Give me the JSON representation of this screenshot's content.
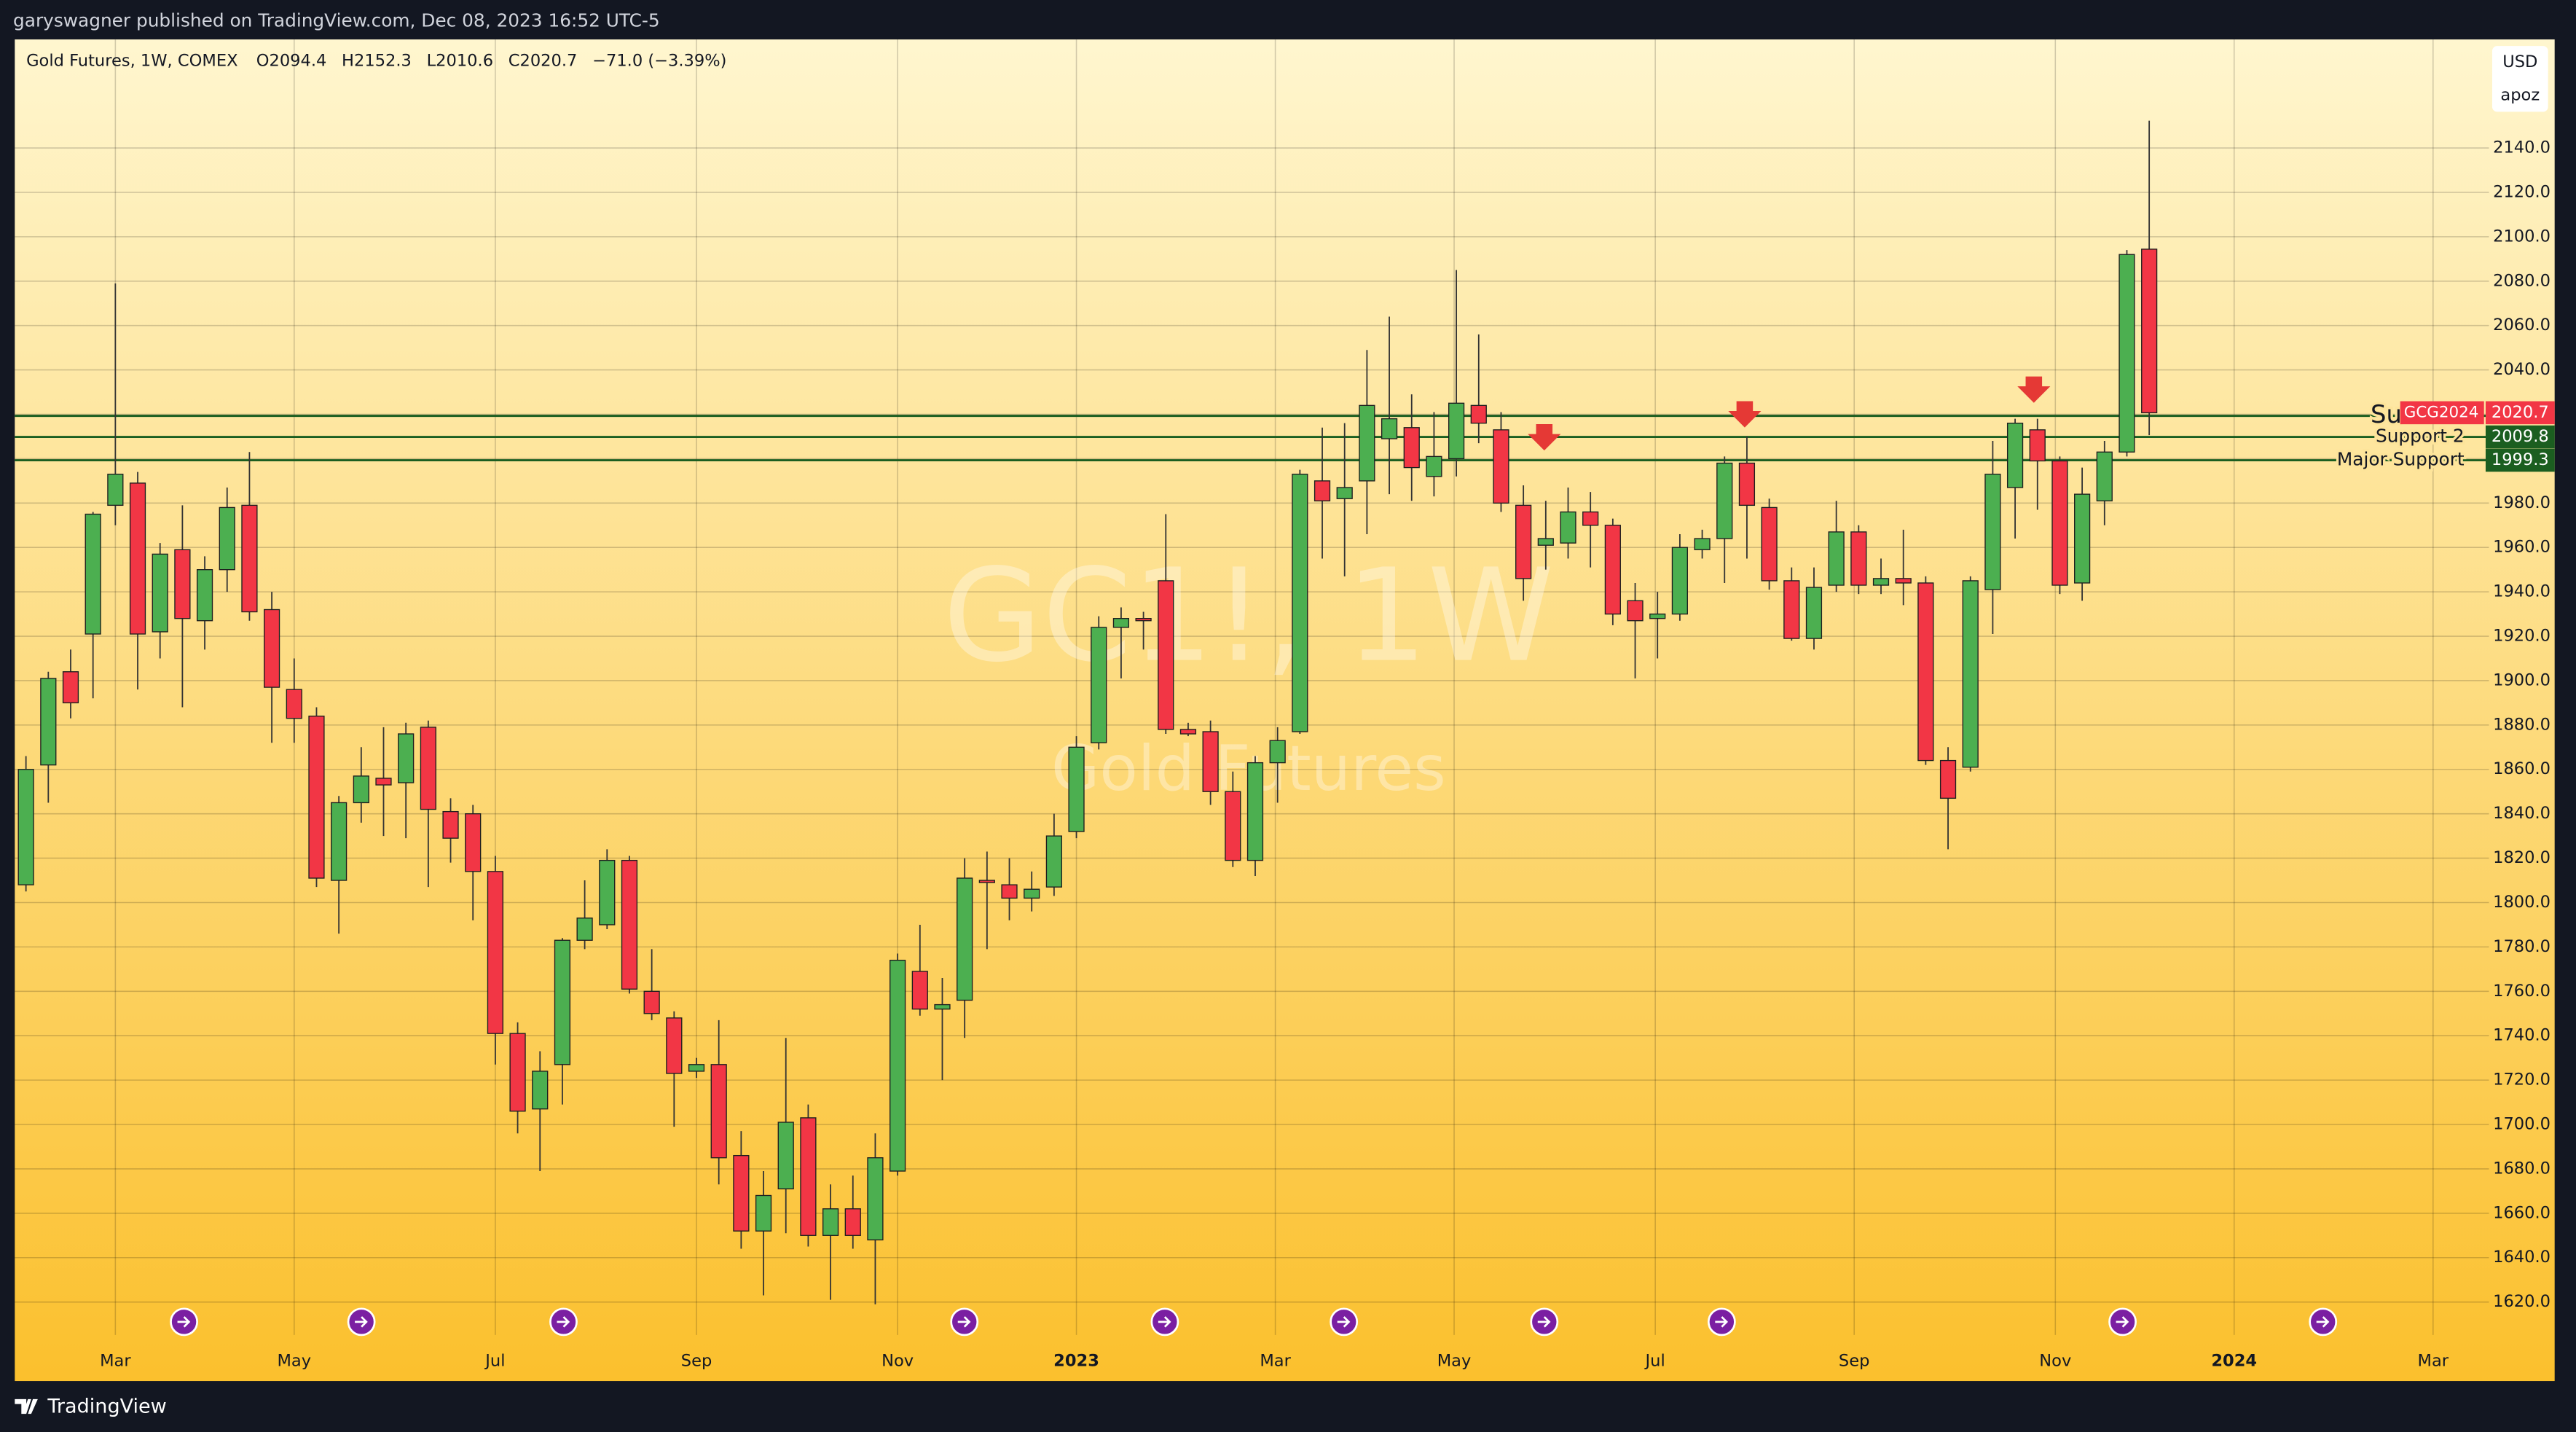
{
  "header": "garyswagner published on TradingView.com, Dec 08, 2023 16:52 UTC-5",
  "footer": "TradingView",
  "chart_data": {
    "type": "candlestick",
    "title": "Gold Futures, 1W, COMEX",
    "ohlc_labels": [
      "O2094.4",
      "H2152.3",
      "L2010.6",
      "C2020.7",
      "−71.0 (−3.39%)"
    ],
    "watermark": [
      "GC1!, 1W",
      "Gold Futures"
    ],
    "currency": "USD",
    "scale_label": "apoz",
    "symbol_label": "GCG2024",
    "last_value": 2020.7,
    "up_color": "#4caf50",
    "down_color": "#f23645",
    "open": [
      1808,
      1862,
      1904,
      1921,
      1979,
      1989,
      1922,
      1959,
      1927,
      1950,
      1979,
      1932,
      1896,
      1884,
      1810,
      1845,
      1856,
      1854,
      1879,
      1841,
      1840,
      1814,
      1741,
      1707,
      1727,
      1783,
      1790,
      1819,
      1760,
      1748,
      1724,
      1727,
      1686,
      1652,
      1671,
      1703,
      1650,
      1662,
      1648,
      1679,
      1769,
      1752,
      1756,
      1810,
      1808,
      1802,
      1807,
      1832,
      1872,
      1924,
      1928,
      1945,
      1878,
      1877,
      1850,
      1819,
      1863,
      1877,
      1990,
      1982,
      1990,
      2009,
      2014,
      1992,
      2000,
      2024,
      2013,
      1979,
      1961,
      1962,
      1976,
      1970,
      1936,
      1928,
      1930,
      1959,
      1964,
      1998,
      1978,
      1945,
      1919,
      1943,
      1967,
      1943,
      1946,
      1944,
      1864,
      1861,
      1941,
      1987,
      2013,
      1999,
      1944,
      1981,
      2003,
      2094.4
    ],
    "high": [
      1866,
      1904,
      1914,
      1976,
      2079,
      1994,
      1962,
      1979,
      1956,
      1987,
      2003,
      1940,
      1910,
      1888,
      1848,
      1870,
      1879,
      1881,
      1882,
      1847,
      1844,
      1821,
      1746,
      1733,
      1784,
      1810,
      1824,
      1821,
      1779,
      1751,
      1730,
      1747,
      1697,
      1679,
      1739,
      1709,
      1673,
      1677,
      1696,
      1777,
      1790,
      1766,
      1820,
      1823,
      1820,
      1814,
      1840,
      1875,
      1929,
      1933,
      1931,
      1975,
      1881,
      1882,
      1859,
      1866,
      1879,
      1995,
      2014,
      2016,
      2049,
      2064,
      2029,
      2021,
      2085,
      2056,
      2021,
      1988,
      1981,
      1987,
      1985,
      1973,
      1944,
      1940,
      1966,
      1968,
      2001,
      2010,
      1982,
      1951,
      1951,
      1981,
      1970,
      1955,
      1968,
      1947,
      1870,
      1947,
      2008,
      2018,
      2018,
      2001,
      1996,
      2008,
      2094,
      2152.3
    ],
    "low": [
      1805,
      1845,
      1883,
      1892,
      1970,
      1896,
      1910,
      1888,
      1914,
      1940,
      1927,
      1872,
      1872,
      1807,
      1786,
      1836,
      1830,
      1829,
      1807,
      1818,
      1792,
      1727,
      1696,
      1679,
      1709,
      1779,
      1788,
      1759,
      1747,
      1699,
      1721,
      1673,
      1644,
      1623,
      1651,
      1645,
      1621,
      1644,
      1619,
      1677,
      1749,
      1720,
      1739,
      1779,
      1792,
      1796,
      1803,
      1829,
      1869,
      1901,
      1914,
      1876,
      1875,
      1844,
      1816,
      1812,
      1845,
      1876,
      1955,
      1947,
      1966,
      1984,
      1981,
      1983,
      1992,
      2007,
      1976,
      1936,
      1950,
      1955,
      1951,
      1925,
      1901,
      1910,
      1927,
      1955,
      1944,
      1955,
      1941,
      1918,
      1914,
      1940,
      1939,
      1939,
      1934,
      1862,
      1824,
      1859,
      1921,
      1964,
      1977,
      1939,
      1936,
      1970,
      2001,
      2010.6
    ],
    "close": [
      1860,
      1901,
      1890,
      1975,
      1993,
      1921,
      1957,
      1928,
      1950,
      1978,
      1931,
      1897,
      1883,
      1811,
      1845,
      1857,
      1853,
      1876,
      1842,
      1829,
      1814,
      1741,
      1706,
      1724,
      1783,
      1793,
      1819,
      1761,
      1750,
      1723,
      1727,
      1685,
      1652,
      1668,
      1701,
      1650,
      1662,
      1650,
      1685,
      1774,
      1752,
      1754,
      1811,
      1809,
      1802,
      1806,
      1830,
      1870,
      1924,
      1928,
      1927,
      1878,
      1876,
      1850,
      1819,
      1863,
      1873,
      1993,
      1981,
      1987,
      2024,
      2018,
      1996,
      2001,
      2025,
      2016,
      1980,
      1946,
      1964,
      1976,
      1970,
      1930,
      1927,
      1930,
      1960,
      1964,
      1998,
      1979,
      1945,
      1919,
      1942,
      1967,
      1943,
      1946,
      1944,
      1864,
      1847,
      1945,
      1993,
      2016,
      1999,
      1943,
      1984,
      2003,
      2092,
      2020.7
    ],
    "xlim": [
      -0.5,
      110.2
    ],
    "xticks": [
      {
        "value": 4.0,
        "label": "Mar"
      },
      {
        "value": 12.0,
        "label": "May"
      },
      {
        "value": 21.0,
        "label": "Jul"
      },
      {
        "value": 30.0,
        "label": "Sep"
      },
      {
        "value": 39.0,
        "label": "Nov"
      },
      {
        "value": 47.0,
        "label": "2023"
      },
      {
        "value": 55.9,
        "label": "Mar"
      },
      {
        "value": 63.9,
        "label": "May"
      },
      {
        "value": 72.9,
        "label": "Jul"
      },
      {
        "value": 81.8,
        "label": "Sep"
      },
      {
        "value": 90.8,
        "label": "Nov"
      },
      {
        "value": 98.8,
        "label": "2024"
      },
      {
        "value": 107.7,
        "label": "Mar"
      }
    ],
    "ylim": [
      1584.4,
      2188.9
    ],
    "yticks": [
      {
        "value": 1620,
        "label": "1620.0"
      },
      {
        "value": 1640,
        "label": "1640.0"
      },
      {
        "value": 1660,
        "label": "1660.0"
      },
      {
        "value": 1680,
        "label": "1680.0"
      },
      {
        "value": 1700,
        "label": "1700.0"
      },
      {
        "value": 1720,
        "label": "1720.0"
      },
      {
        "value": 1740,
        "label": "1740.0"
      },
      {
        "value": 1760,
        "label": "1760.0"
      },
      {
        "value": 1780,
        "label": "1780.0"
      },
      {
        "value": 1800,
        "label": "1800.0"
      },
      {
        "value": 1820,
        "label": "1820.0"
      },
      {
        "value": 1840,
        "label": "1840.0"
      },
      {
        "value": 1860,
        "label": "1860.0"
      },
      {
        "value": 1880,
        "label": "1880.0"
      },
      {
        "value": 1900,
        "label": "1900.0"
      },
      {
        "value": 1920,
        "label": "1920.0"
      },
      {
        "value": 1940,
        "label": "1940.0"
      },
      {
        "value": 1960,
        "label": "1960.0"
      },
      {
        "value": 1980,
        "label": "1980.0"
      },
      {
        "value": 2000,
        "label": "2000.0"
      },
      {
        "value": 2020,
        "label": "2020.0"
      },
      {
        "value": 2040,
        "label": "2040.0"
      },
      {
        "value": 2060,
        "label": "2060.0"
      },
      {
        "value": 2080,
        "label": "2080.0"
      },
      {
        "value": 2100,
        "label": "2100.0"
      },
      {
        "value": 2120,
        "label": "2120.0"
      },
      {
        "value": 2140,
        "label": "2140.0"
      }
    ],
    "grid": true,
    "levels": [
      {
        "name": "Su",
        "value": 2019.3,
        "color": "#1b5e20"
      },
      {
        "name": "Support 2",
        "value": 2009.8,
        "color": "#1b5e20"
      },
      {
        "name": "Major Support",
        "value": 1999.3,
        "color": "#1b5e20"
      }
    ]
  }
}
